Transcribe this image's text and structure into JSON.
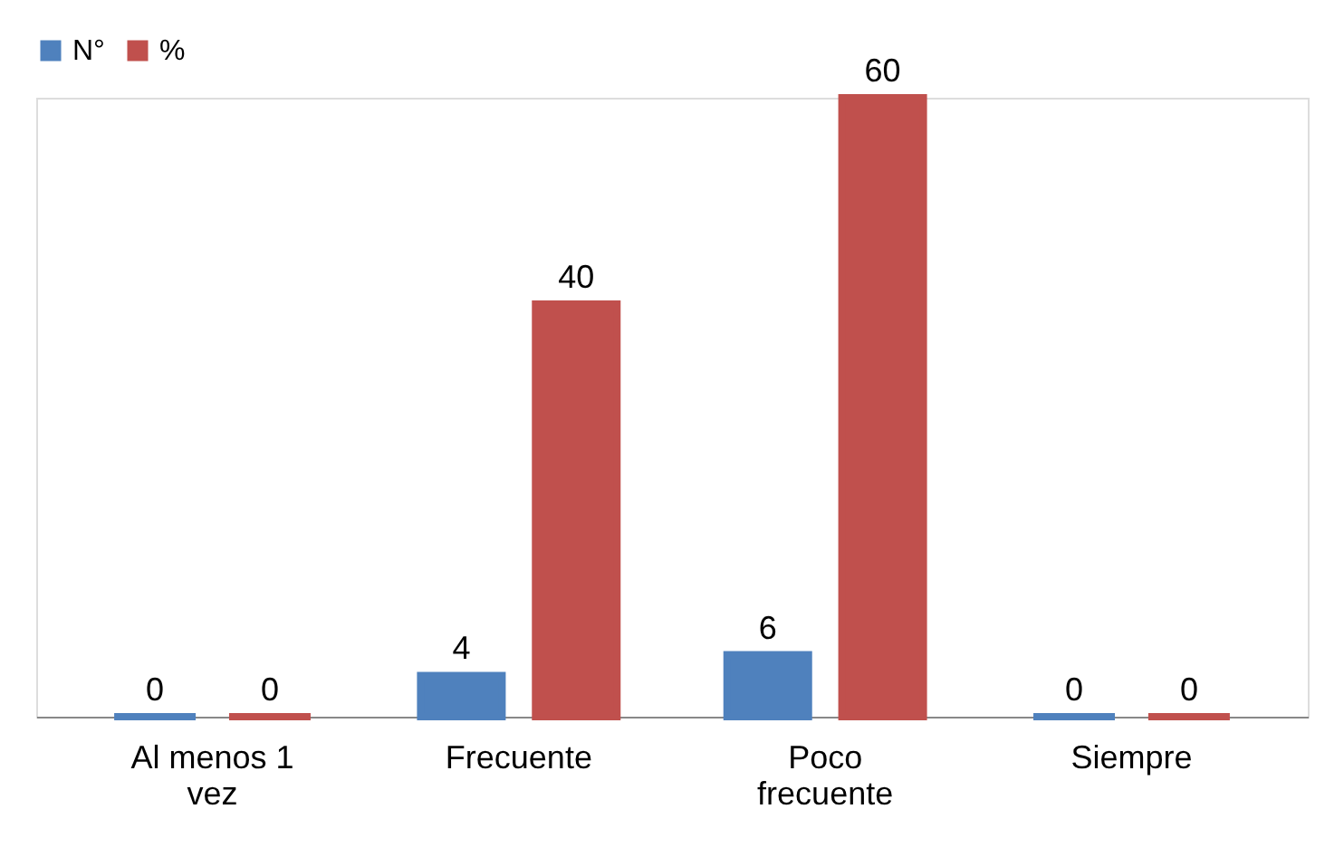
{
  "chart_data": {
    "type": "bar",
    "categories": [
      "Al menos 1 vez",
      "Frecuente",
      "Poco frecuente",
      "Siempre"
    ],
    "series": [
      {
        "name": "N°",
        "color": "#4f81bd",
        "values": [
          0,
          4,
          6,
          0
        ]
      },
      {
        "name": "%",
        "color": "#c0504d",
        "values": [
          0,
          40,
          60,
          0
        ]
      }
    ],
    "data_labels": true,
    "legend": "top"
  }
}
